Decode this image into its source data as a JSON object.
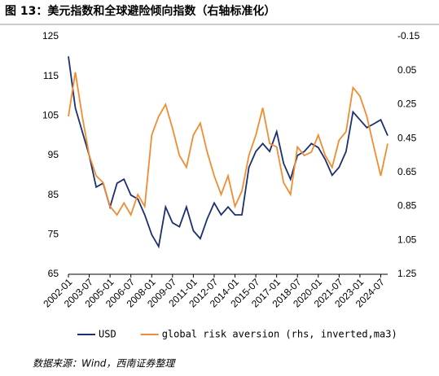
{
  "chart_data": {
    "type": "line",
    "title": "图 13：美元指数和全球避险倾向指数（右轴标准化）",
    "source": "数据来源：Wind，西南证券整理",
    "x": [
      "2002-01",
      "2002-07",
      "2003-01",
      "2003-07",
      "2004-01",
      "2004-07",
      "2005-01",
      "2005-07",
      "2006-01",
      "2006-07",
      "2007-01",
      "2007-07",
      "2008-01",
      "2008-07",
      "2009-01",
      "2009-07",
      "2010-01",
      "2010-07",
      "2011-01",
      "2011-07",
      "2012-01",
      "2012-07",
      "2013-01",
      "2013-07",
      "2014-01",
      "2014-07",
      "2015-01",
      "2015-07",
      "2016-01",
      "2016-07",
      "2017-01",
      "2017-07",
      "2018-01",
      "2018-07",
      "2019-01",
      "2019-07",
      "2020-01",
      "2020-07",
      "2021-01",
      "2021-07",
      "2022-01",
      "2022-07",
      "2023-01",
      "2023-07",
      "2024-01",
      "2024-07",
      "2025-01"
    ],
    "xlim": [
      "2002-01",
      "2025-01"
    ],
    "xticks": [
      "2002-01",
      "2003-07",
      "2005-01",
      "2006-07",
      "2008-01",
      "2009-07",
      "2011-01",
      "2012-07",
      "2014-01",
      "2015-07",
      "2017-01",
      "2018-07",
      "2020-01",
      "2021-07",
      "2023-01",
      "2024-07"
    ],
    "ylim": [
      65,
      125
    ],
    "yticks": [
      65,
      75,
      85,
      95,
      105,
      115,
      125
    ],
    "y2lim": [
      1.25,
      -0.15
    ],
    "y2ticks": [
      -0.15,
      0.05,
      0.25,
      0.45,
      0.65,
      0.85,
      1.05,
      1.25
    ],
    "legend": "bottom",
    "series": [
      {
        "name": "USD",
        "color": "#1c2f6e",
        "values": [
          120,
          107,
          101,
          95,
          87,
          88,
          82,
          88,
          89,
          85,
          84,
          80,
          75,
          72,
          82,
          78,
          77,
          82,
          76,
          74,
          79,
          83,
          80,
          82,
          80,
          80,
          92,
          96,
          98,
          96,
          101,
          93,
          89,
          95,
          96,
          98,
          97,
          94,
          90,
          92,
          96,
          106,
          104,
          102,
          103,
          104,
          100
        ]
      },
      {
        "name": "global risk aversion (rhs, inverted,ma3)",
        "color": "#f28c32",
        "axis": "y2",
        "values": [
          0.32,
          0.06,
          0.32,
          0.55,
          0.67,
          0.71,
          0.85,
          0.9,
          0.83,
          0.9,
          0.78,
          0.85,
          0.43,
          0.32,
          0.25,
          0.39,
          0.55,
          0.62,
          0.43,
          0.36,
          0.53,
          0.67,
          0.78,
          0.67,
          0.85,
          0.76,
          0.55,
          0.43,
          0.27,
          0.48,
          0.5,
          0.71,
          0.78,
          0.5,
          0.55,
          0.53,
          0.43,
          0.55,
          0.62,
          0.46,
          0.41,
          0.15,
          0.2,
          0.32,
          0.5,
          0.67,
          0.48
        ]
      }
    ]
  }
}
